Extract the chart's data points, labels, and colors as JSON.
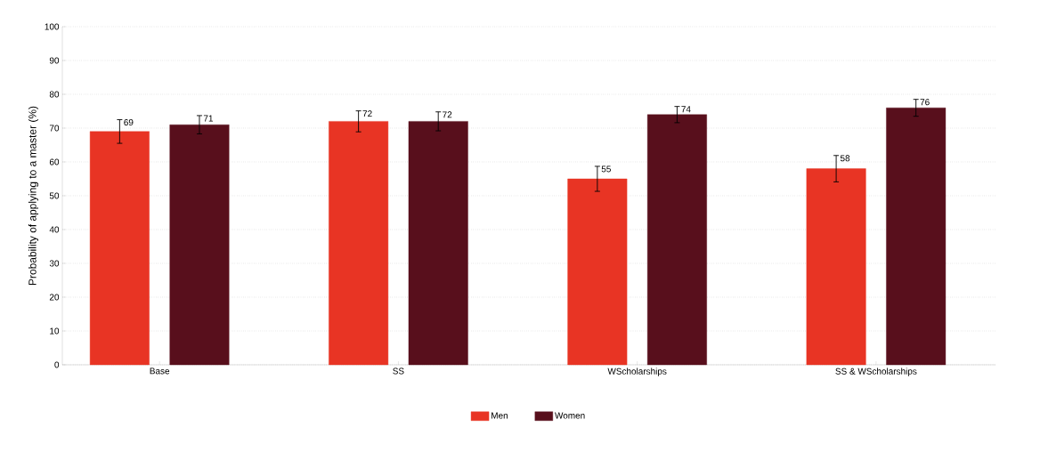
{
  "chart_data": {
    "type": "bar",
    "ylabel": "Probability of applying to a master (%)",
    "categories": [
      "Base",
      "SS",
      "WScholarships",
      "SS & WScholarships"
    ],
    "series": [
      {
        "name": "Men",
        "color": "#e83424",
        "values": [
          69,
          72,
          55,
          58
        ],
        "errors": [
          3.5,
          3.1,
          3.7,
          3.9
        ]
      },
      {
        "name": "Women",
        "color": "#580f1c",
        "values": [
          71,
          72,
          74,
          76
        ],
        "errors": [
          2.7,
          2.8,
          2.4,
          2.5
        ]
      }
    ],
    "ylim": [
      0,
      100
    ],
    "yticks": [
      0,
      10,
      20,
      30,
      40,
      50,
      60,
      70,
      80,
      90,
      100
    ],
    "grid": "y",
    "legend": "bottom",
    "data_labels": true
  }
}
